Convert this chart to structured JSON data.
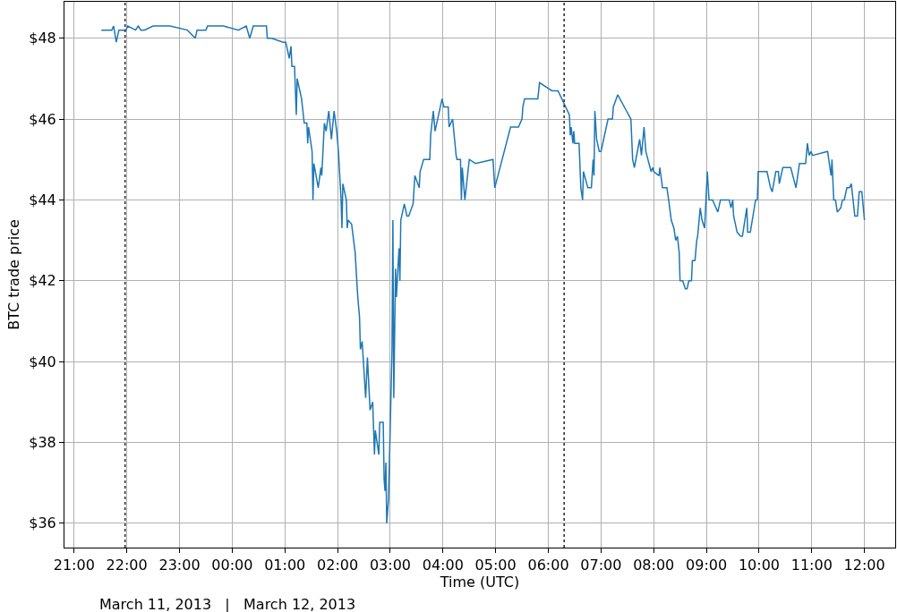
{
  "chart_data": {
    "type": "line",
    "xlabel": "Time (UTC)",
    "ylabel": "BTC trade price",
    "annotations": [
      "March 11, 2013   |   March 12, 2013"
    ],
    "x": [
      "2013-03-11T21:31",
      "2013-03-11T21:43",
      "2013-03-11T21:45",
      "2013-03-11T21:48",
      "2013-03-11T21:51",
      "2013-03-11T21:59",
      "2013-03-11T22:01",
      "2013-03-11T22:10",
      "2013-03-11T22:13",
      "2013-03-11T22:16",
      "2013-03-11T22:20",
      "2013-03-11T22:30",
      "2013-03-11T22:49",
      "2013-03-11T23:09",
      "2013-03-11T23:18",
      "2013-03-11T23:20",
      "2013-03-11T23:30",
      "2013-03-11T23:32",
      "2013-03-11T23:50",
      "2013-03-12T00:07",
      "2013-03-12T00:16",
      "2013-03-12T00:20",
      "2013-03-12T00:24",
      "2013-03-12T00:39",
      "2013-03-12T00:40",
      "2013-03-12T00:45",
      "2013-03-12T00:58",
      "2013-03-12T01:01",
      "2013-03-12T01:05",
      "2013-03-12T01:07",
      "2013-03-12T01:08",
      "2013-03-12T01:11",
      "2013-03-12T01:13",
      "2013-03-12T01:14",
      "2013-03-12T01:19",
      "2013-03-12T01:22",
      "2013-03-12T01:25",
      "2013-03-12T01:26",
      "2013-03-12T01:27",
      "2013-03-12T01:31",
      "2013-03-12T01:32",
      "2013-03-12T01:33",
      "2013-03-12T01:38",
      "2013-03-12T01:41",
      "2013-03-12T01:42",
      "2013-03-12T01:45",
      "2013-03-12T01:47",
      "2013-03-12T01:50",
      "2013-03-12T01:53",
      "2013-03-12T01:56",
      "2013-03-12T01:59",
      "2013-03-12T02:01",
      "2013-03-12T02:04",
      "2013-03-12T02:05",
      "2013-03-12T02:06",
      "2013-03-12T02:10",
      "2013-03-12T02:11",
      "2013-03-12T02:12",
      "2013-03-12T02:16",
      "2013-03-12T02:20",
      "2013-03-12T02:23",
      "2013-03-12T02:25",
      "2013-03-12T02:26",
      "2013-03-12T02:28",
      "2013-03-12T02:32",
      "2013-03-12T02:34",
      "2013-03-12T02:37",
      "2013-03-12T02:40",
      "2013-03-12T02:42",
      "2013-03-12T02:43",
      "2013-03-12T02:47",
      "2013-03-12T02:48",
      "2013-03-12T02:52",
      "2013-03-12T02:53",
      "2013-03-12T02:54",
      "2013-03-12T02:55",
      "2013-03-12T02:56",
      "2013-03-12T02:58",
      "2013-03-12T03:00",
      "2013-03-12T03:02",
      "2013-03-12T03:03",
      "2013-03-12T03:04",
      "2013-03-12T03:06",
      "2013-03-12T03:07",
      "2013-03-12T03:10",
      "2013-03-12T03:11",
      "2013-03-12T03:12",
      "2013-03-12T03:16",
      "2013-03-12T03:19",
      "2013-03-12T03:21",
      "2013-03-12T03:26",
      "2013-03-12T03:28",
      "2013-03-12T03:33",
      "2013-03-12T03:34",
      "2013-03-12T03:38",
      "2013-03-12T03:45",
      "2013-03-12T03:46",
      "2013-03-12T03:49",
      "2013-03-12T03:51",
      "2013-03-12T03:59",
      "2013-03-12T04:01",
      "2013-03-12T04:06",
      "2013-03-12T04:07",
      "2013-03-12T04:11",
      "2013-03-12T04:15",
      "2013-03-12T04:16",
      "2013-03-12T04:20",
      "2013-03-12T04:21",
      "2013-03-12T04:22",
      "2013-03-12T04:25",
      "2013-03-12T04:30",
      "2013-03-12T04:37",
      "2013-03-12T04:57",
      "2013-03-12T04:59",
      "2013-03-12T05:17",
      "2013-03-12T05:26",
      "2013-03-12T05:30",
      "2013-03-12T05:31",
      "2013-03-12T05:33",
      "2013-03-12T05:48",
      "2013-03-12T05:50",
      "2013-03-12T06:04",
      "2013-03-12T06:11",
      "2013-03-12T06:24",
      "2013-03-12T06:25",
      "2013-03-12T06:26",
      "2013-03-12T06:28",
      "2013-03-12T06:29",
      "2013-03-12T06:30",
      "2013-03-12T06:35",
      "2013-03-12T06:37",
      "2013-03-12T06:39",
      "2013-03-12T06:40",
      "2013-03-12T06:45",
      "2013-03-12T06:49",
      "2013-03-12T06:51",
      "2013-03-12T06:52",
      "2013-03-12T06:53",
      "2013-03-12T06:55",
      "2013-03-12T06:58",
      "2013-03-12T07:00",
      "2013-03-12T07:08",
      "2013-03-12T07:13",
      "2013-03-12T07:14",
      "2013-03-12T07:19",
      "2013-03-12T07:29",
      "2013-03-12T07:34",
      "2013-03-12T07:36",
      "2013-03-12T07:38",
      "2013-03-12T07:44",
      "2013-03-12T07:46",
      "2013-03-12T07:49",
      "2013-03-12T07:51",
      "2013-03-12T07:57",
      "2013-03-12T07:59",
      "2013-03-12T08:00",
      "2013-03-12T08:06",
      "2013-03-12T08:07",
      "2013-03-12T08:10",
      "2013-03-12T08:15",
      "2013-03-12T08:17",
      "2013-03-12T08:20",
      "2013-03-12T08:23",
      "2013-03-12T08:25",
      "2013-03-12T08:27",
      "2013-03-12T08:29",
      "2013-03-12T08:30",
      "2013-03-12T08:33",
      "2013-03-12T08:36",
      "2013-03-12T08:38",
      "2013-03-12T08:40",
      "2013-03-12T08:43",
      "2013-03-12T08:44",
      "2013-03-12T08:47",
      "2013-03-12T08:49",
      "2013-03-12T08:50",
      "2013-03-12T08:53",
      "2013-03-12T08:55",
      "2013-03-12T08:58",
      "2013-03-12T09:01",
      "2013-03-12T09:03",
      "2013-03-12T09:07",
      "2013-03-12T09:13",
      "2013-03-12T09:16",
      "2013-03-12T09:26",
      "2013-03-12T09:28",
      "2013-03-12T09:30",
      "2013-03-12T09:31",
      "2013-03-12T09:35",
      "2013-03-12T09:39",
      "2013-03-12T09:41",
      "2013-03-12T09:46",
      "2013-03-12T09:47",
      "2013-03-12T09:50",
      "2013-03-12T09:56",
      "2013-03-12T09:58",
      "2013-03-12T09:59",
      "2013-03-12T10:09",
      "2013-03-12T10:13",
      "2013-03-12T10:15",
      "2013-03-12T10:19",
      "2013-03-12T10:22",
      "2013-03-12T10:23",
      "2013-03-12T10:27",
      "2013-03-12T10:36",
      "2013-03-12T10:42",
      "2013-03-12T10:46",
      "2013-03-12T10:53",
      "2013-03-12T10:55",
      "2013-03-12T10:57",
      "2013-03-12T10:59",
      "2013-03-12T11:01",
      "2013-03-12T11:18",
      "2013-03-12T11:22",
      "2013-03-12T11:23",
      "2013-03-12T11:25",
      "2013-03-12T11:27",
      "2013-03-12T11:29",
      "2013-03-12T11:33",
      "2013-03-12T11:35",
      "2013-03-12T11:37",
      "2013-03-12T11:40",
      "2013-03-12T11:43",
      "2013-03-12T11:45",
      "2013-03-12T11:47",
      "2013-03-12T11:49",
      "2013-03-12T11:52",
      "2013-03-12T11:54",
      "2013-03-12T11:57",
      "2013-03-12T12:00"
    ],
    "series": [
      {
        "color": "#1f77b4",
        "values": [
          48.2,
          48.2,
          48.3,
          47.9,
          48.2,
          48.2,
          48.3,
          48.2,
          48.3,
          48.2,
          48.2,
          48.3,
          48.3,
          48.2,
          48.0,
          48.2,
          48.2,
          48.3,
          48.3,
          48.2,
          48.3,
          48.0,
          48.3,
          48.3,
          48.0,
          48.0,
          47.9,
          47.9,
          47.5,
          47.8,
          47.3,
          47.3,
          46.1,
          47.0,
          46.5,
          45.9,
          45.9,
          45.4,
          45.8,
          45.2,
          44.0,
          44.9,
          44.3,
          44.8,
          44.6,
          45.9,
          45.7,
          46.2,
          45.5,
          46.2,
          45.7,
          45.2,
          44.0,
          43.3,
          44.4,
          44.0,
          43.3,
          43.5,
          43.4,
          42.7,
          41.6,
          41.1,
          40.3,
          40.5,
          39.1,
          40.1,
          38.8,
          39.0,
          37.7,
          38.3,
          37.7,
          38.5,
          38.5,
          37.1,
          36.8,
          37.5,
          36.0,
          36.6,
          38.4,
          40.3,
          43.5,
          39.1,
          42.3,
          41.6,
          42.8,
          42.0,
          43.5,
          43.9,
          43.6,
          43.6,
          43.9,
          44.6,
          44.3,
          44.7,
          45.0,
          45.0,
          45.6,
          46.2,
          45.7,
          46.5,
          46.3,
          46.3,
          45.8,
          46.0,
          45.1,
          45.0,
          45.0,
          44.0,
          44.8,
          44.0,
          45.0,
          44.9,
          45.0,
          44.3,
          45.8,
          45.8,
          46.0,
          46.3,
          46.5,
          46.5,
          46.9,
          46.7,
          46.7,
          46.1,
          45.6,
          45.8,
          45.4,
          45.7,
          45.4,
          45.4,
          44.3,
          44.0,
          44.7,
          44.3,
          44.3,
          45.0,
          44.6,
          46.2,
          45.5,
          45.2,
          45.2,
          46.0,
          46.0,
          46.3,
          46.6,
          46.2,
          46.0,
          45.0,
          44.8,
          45.5,
          45.1,
          45.8,
          45.2,
          44.7,
          44.8,
          44.7,
          44.6,
          44.8,
          44.3,
          44.3,
          44.0,
          43.5,
          43.3,
          43.0,
          43.1,
          42.7,
          42.0,
          42.0,
          41.8,
          41.8,
          42.0,
          42.0,
          42.5,
          42.5,
          43.0,
          43.1,
          43.8,
          43.5,
          43.3,
          44.7,
          44.0,
          44.0,
          43.7,
          44.0,
          44.0,
          43.8,
          44.0,
          43.6,
          43.2,
          43.1,
          43.1,
          43.8,
          43.2,
          43.2,
          44.0,
          44.0,
          44.7,
          44.7,
          44.3,
          44.2,
          44.7,
          44.7,
          44.4,
          44.8,
          44.8,
          44.3,
          44.9,
          44.9,
          45.4,
          45.1,
          45.2,
          45.1,
          45.2,
          44.6,
          45.0,
          44.0,
          44.0,
          43.7,
          43.8,
          44.0,
          44.0,
          44.3,
          44.3,
          44.4,
          44.0,
          43.6,
          43.6,
          44.2,
          44.2,
          43.5
        ]
      }
    ],
    "xlim": [
      "2013-03-11T20:49",
      "2013-03-12T12:35"
    ],
    "xticks": [
      {
        "value": "2013-03-11T21:00",
        "label": "21:00"
      },
      {
        "value": "2013-03-11T22:00",
        "label": "22:00"
      },
      {
        "value": "2013-03-11T23:00",
        "label": "23:00"
      },
      {
        "value": "2013-03-12T00:00",
        "label": "00:00"
      },
      {
        "value": "2013-03-12T01:00",
        "label": "01:00"
      },
      {
        "value": "2013-03-12T02:00",
        "label": "02:00"
      },
      {
        "value": "2013-03-12T03:00",
        "label": "03:00"
      },
      {
        "value": "2013-03-12T04:00",
        "label": "04:00"
      },
      {
        "value": "2013-03-12T05:00",
        "label": "05:00"
      },
      {
        "value": "2013-03-12T06:00",
        "label": "06:00"
      },
      {
        "value": "2013-03-12T07:00",
        "label": "07:00"
      },
      {
        "value": "2013-03-12T08:00",
        "label": "08:00"
      },
      {
        "value": "2013-03-12T09:00",
        "label": "09:00"
      },
      {
        "value": "2013-03-12T10:00",
        "label": "10:00"
      },
      {
        "value": "2013-03-12T11:00",
        "label": "11:00"
      },
      {
        "value": "2013-03-12T12:00",
        "label": "12:00"
      }
    ],
    "ylim": [
      35.4,
      48.9
    ],
    "yticks": [
      {
        "value": 36,
        "label": "$36"
      },
      {
        "value": 38,
        "label": "$38"
      },
      {
        "value": 40,
        "label": "$40"
      },
      {
        "value": 42,
        "label": "$42"
      },
      {
        "value": 44,
        "label": "$44"
      },
      {
        "value": 46,
        "label": "$46"
      },
      {
        "value": 48,
        "label": "$48"
      }
    ],
    "ref_lines": [
      {
        "axis": "x",
        "value": "2013-03-11T21:58",
        "color": "#333333",
        "line_style": "dotted"
      },
      {
        "axis": "x",
        "value": "2013-03-12T06:18",
        "color": "#333333",
        "line_style": "dotted"
      }
    ],
    "grid": true,
    "line_style": "solid"
  }
}
